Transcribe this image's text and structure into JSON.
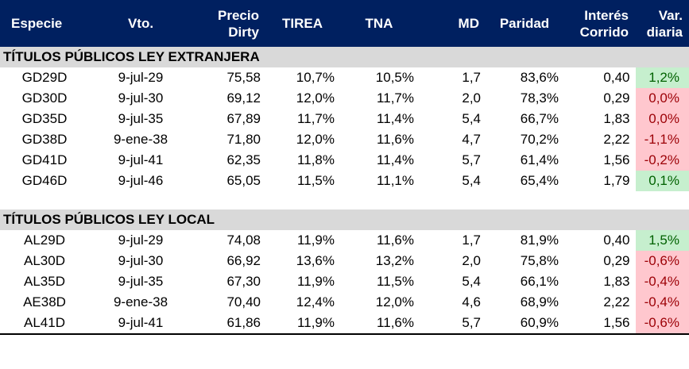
{
  "headers": [
    {
      "label": "Especie",
      "align": "left"
    },
    {
      "label": "Vto.",
      "align": "center"
    },
    {
      "label": "Precio Dirty",
      "align": "right"
    },
    {
      "label": "TIREA",
      "align": "center"
    },
    {
      "label": "TNA",
      "align": "center"
    },
    {
      "label": "MD",
      "align": "right"
    },
    {
      "label": "Paridad",
      "align": "center"
    },
    {
      "label": "Interés Corrido",
      "align": "right"
    },
    {
      "label": "Var. diaria",
      "align": "right"
    }
  ],
  "colors": {
    "header_bg": "#002060",
    "section_bg": "#d9d9d9",
    "positive_bg": "#c6efce",
    "positive_text": "#006100",
    "negative_bg": "#ffc7ce",
    "negative_text": "#9c0006"
  },
  "sections": [
    {
      "title": "TÍTULOS PÚBLICOS LEY EXTRANJERA",
      "rows": [
        {
          "especie": "GD29D",
          "vto": "9-jul-29",
          "precio": "75,58",
          "tirea": "10,7%",
          "tna": "10,5%",
          "md": "1,7",
          "paridad": "83,6%",
          "interes": "0,40",
          "var": "1,2%",
          "trend": "pos"
        },
        {
          "especie": "GD30D",
          "vto": "9-jul-30",
          "precio": "69,12",
          "tirea": "12,0%",
          "tna": "11,7%",
          "md": "2,0",
          "paridad": "78,3%",
          "interes": "0,29",
          "var": "0,0%",
          "trend": "neg"
        },
        {
          "especie": "GD35D",
          "vto": "9-jul-35",
          "precio": "67,89",
          "tirea": "11,7%",
          "tna": "11,4%",
          "md": "5,4",
          "paridad": "66,7%",
          "interes": "1,83",
          "var": "0,0%",
          "trend": "neg"
        },
        {
          "especie": "GD38D",
          "vto": "9-ene-38",
          "precio": "71,80",
          "tirea": "12,0%",
          "tna": "11,6%",
          "md": "4,7",
          "paridad": "70,2%",
          "interes": "2,22",
          "var": "-1,1%",
          "trend": "neg"
        },
        {
          "especie": "GD41D",
          "vto": "9-jul-41",
          "precio": "62,35",
          "tirea": "11,8%",
          "tna": "11,4%",
          "md": "5,7",
          "paridad": "61,4%",
          "interes": "1,56",
          "var": "-0,2%",
          "trend": "neg"
        },
        {
          "especie": "GD46D",
          "vto": "9-jul-46",
          "precio": "65,05",
          "tirea": "11,5%",
          "tna": "11,1%",
          "md": "5,4",
          "paridad": "65,4%",
          "interes": "1,79",
          "var": "0,1%",
          "trend": "pos"
        }
      ]
    },
    {
      "title": "TÍTULOS PÚBLICOS LEY LOCAL",
      "rows": [
        {
          "especie": "AL29D",
          "vto": "9-jul-29",
          "precio": "74,08",
          "tirea": "11,9%",
          "tna": "11,6%",
          "md": "1,7",
          "paridad": "81,9%",
          "interes": "0,40",
          "var": "1,5%",
          "trend": "pos"
        },
        {
          "especie": "AL30D",
          "vto": "9-jul-30",
          "precio": "66,92",
          "tirea": "13,6%",
          "tna": "13,2%",
          "md": "2,0",
          "paridad": "75,8%",
          "interes": "0,29",
          "var": "-0,6%",
          "trend": "neg"
        },
        {
          "especie": "AL35D",
          "vto": "9-jul-35",
          "precio": "67,30",
          "tirea": "11,9%",
          "tna": "11,5%",
          "md": "5,4",
          "paridad": "66,1%",
          "interes": "1,83",
          "var": "-0,4%",
          "trend": "neg"
        },
        {
          "especie": "AE38D",
          "vto": "9-ene-38",
          "precio": "70,40",
          "tirea": "12,4%",
          "tna": "12,0%",
          "md": "4,6",
          "paridad": "68,9%",
          "interes": "2,22",
          "var": "-0,4%",
          "trend": "neg"
        },
        {
          "especie": "AL41D",
          "vto": "9-jul-41",
          "precio": "61,86",
          "tirea": "11,9%",
          "tna": "11,6%",
          "md": "5,7",
          "paridad": "60,9%",
          "interes": "1,56",
          "var": "-0,6%",
          "trend": "neg"
        }
      ]
    }
  ]
}
